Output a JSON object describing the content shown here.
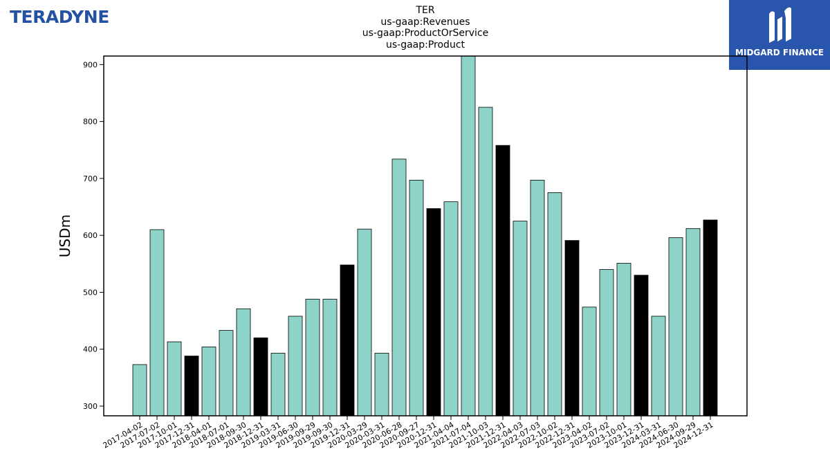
{
  "chart_data": {
    "type": "bar",
    "title": [
      "TER",
      "us-gaap:Revenues",
      "us-gaap:ProductOrService",
      "us-gaap:Product"
    ],
    "xlabel": "",
    "ylabel": "USDm",
    "ylim": [
      283,
      915
    ],
    "yticks": [
      300,
      400,
      500,
      600,
      700,
      800,
      900
    ],
    "categories": [
      "2017-04-02",
      "2017-07-02",
      "2017-10-01",
      "2017-12-31",
      "2018-04-01",
      "2018-07-01",
      "2018-09-30",
      "2018-12-31",
      "2019-03-31",
      "2019-06-30",
      "2019-09-29",
      "2019-09-30",
      "2019-12-31",
      "2020-03-29",
      "2020-03-31",
      "2020-06-28",
      "2020-09-27",
      "2020-12-31",
      "2021-04-04",
      "2021-07-04",
      "2021-10-03",
      "2021-12-31",
      "2022-04-03",
      "2022-07-03",
      "2022-10-02",
      "2022-12-31",
      "2023-04-02",
      "2023-07-02",
      "2023-10-01",
      "2023-12-31",
      "2024-03-31",
      "2024-06-30",
      "2024-09-29",
      "2024-12-31"
    ],
    "values": [
      373,
      610,
      413,
      388,
      404,
      433,
      471,
      420,
      393,
      458,
      488,
      488,
      548,
      611,
      393,
      734,
      697,
      647,
      659,
      917,
      825,
      758,
      625,
      697,
      675,
      591,
      474,
      540,
      551,
      530,
      458,
      596,
      612,
      627
    ],
    "annual_flags": [
      false,
      false,
      false,
      true,
      false,
      false,
      false,
      true,
      false,
      false,
      false,
      false,
      true,
      false,
      false,
      false,
      false,
      true,
      false,
      false,
      false,
      true,
      false,
      false,
      false,
      true,
      false,
      false,
      false,
      true,
      false,
      false,
      false,
      true
    ],
    "colors": {
      "quarter": "#8dd3c7",
      "annual": "#000000",
      "edge": "#000000"
    },
    "grid": false,
    "legend": "none"
  },
  "logos": {
    "left": "TERADYNE",
    "right": "MIDGARD FINANCE"
  }
}
